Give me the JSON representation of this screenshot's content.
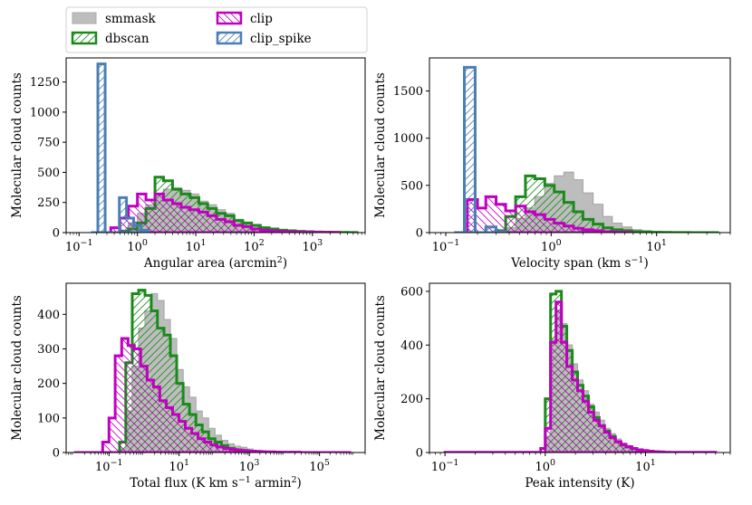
{
  "legend": {
    "placement": "top-left, above the top-left panel",
    "entries": [
      {
        "label": "smmask",
        "edge": "#a9a9a9",
        "fill": "#bdbdbd",
        "hatch": "none"
      },
      {
        "label": "dbscan",
        "edge": "#1a8a1a",
        "fill": "none",
        "hatch": "//"
      },
      {
        "label": "clip",
        "edge": "#c000c0",
        "fill": "none",
        "hatch": "\\\\"
      },
      {
        "label": "clip_spike",
        "edge": "#4a7fb5",
        "fill": "none",
        "hatch": "//"
      }
    ]
  },
  "chart_data": [
    {
      "type": "histogram",
      "xlabel": "Angular area (arcmin",
      "xlabel_sup": "2",
      "xlabel_tail": ")",
      "ylabel": "Molecular cloud counts",
      "xscale": "log",
      "xlim": [
        0.06,
        8000
      ],
      "ylim": [
        0,
        1450
      ],
      "grid": false,
      "xticks": [
        {
          "value": 0.1,
          "base": "10",
          "exp": "−1"
        },
        {
          "value": 1,
          "base": "10",
          "exp": "0"
        },
        {
          "value": 10,
          "base": "10",
          "exp": "1"
        },
        {
          "value": 100,
          "base": "10",
          "exp": "2"
        },
        {
          "value": 1000,
          "base": "10",
          "exp": "3"
        }
      ],
      "yticks": [
        0,
        250,
        500,
        750,
        1000,
        1250
      ],
      "series": [
        {
          "name": "smmask",
          "edges": [
            0.5,
            0.7,
            1.0,
            1.4,
            2.0,
            2.8,
            4.0,
            5.6,
            8.0,
            11.3,
            16,
            22.6,
            32,
            45.3,
            64,
            90.5,
            128,
            181,
            256,
            362,
            512,
            724,
            1024,
            1448,
            2048,
            2896,
            4096,
            5793
          ],
          "counts": [
            20,
            80,
            160,
            230,
            320,
            360,
            370,
            350,
            320,
            260,
            230,
            190,
            160,
            110,
            80,
            60,
            45,
            30,
            20,
            15,
            10,
            8,
            6,
            5,
            3,
            2,
            1
          ]
        },
        {
          "name": "dbscan",
          "edges": [
            0.5,
            0.7,
            1.0,
            1.4,
            2.0,
            2.8,
            4.0,
            5.6,
            8.0,
            11.3,
            16,
            22.6,
            32,
            45.3,
            64,
            90.5,
            128,
            181,
            256,
            362,
            512,
            724,
            1024,
            1448,
            2048,
            2896,
            4096,
            5793
          ],
          "counts": [
            10,
            30,
            80,
            200,
            460,
            430,
            360,
            320,
            290,
            240,
            200,
            160,
            140,
            100,
            80,
            60,
            40,
            30,
            20,
            15,
            10,
            8,
            5,
            4,
            3,
            2,
            1
          ]
        },
        {
          "name": "clip",
          "edges": [
            0.35,
            0.5,
            0.7,
            1.0,
            1.4,
            2.0,
            2.8,
            4.0,
            5.6,
            8.0,
            11.3,
            16,
            22.6,
            32,
            45.3,
            64,
            90.5,
            128,
            181,
            256,
            362,
            512,
            724,
            1024,
            1448,
            2048,
            2896
          ],
          "counts": [
            40,
            120,
            220,
            320,
            270,
            320,
            270,
            240,
            210,
            190,
            170,
            140,
            110,
            90,
            60,
            50,
            30,
            20,
            15,
            10,
            8,
            5,
            4,
            3,
            2,
            1
          ]
        },
        {
          "name": "clip_spike",
          "edges": [
            0.16,
            0.21,
            0.28,
            0.37,
            0.49,
            0.65,
            0.86,
            1.15,
            1.53
          ],
          "counts": [
            0,
            1400,
            0,
            0,
            290,
            120,
            60,
            20
          ]
        }
      ]
    },
    {
      "type": "histogram",
      "xlabel": "Velocity span (km s",
      "xlabel_sup": "−1",
      "xlabel_tail": ")",
      "ylabel": "Molecular cloud counts",
      "xscale": "log",
      "xlim": [
        0.07,
        50
      ],
      "ylim": [
        0,
        1850
      ],
      "grid": false,
      "xticks": [
        {
          "value": 0.1,
          "base": "10",
          "exp": "−1"
        },
        {
          "value": 1,
          "base": "10",
          "exp": "0"
        },
        {
          "value": 10,
          "base": "10",
          "exp": "1"
        }
      ],
      "yticks": [
        0,
        500,
        1000,
        1500
      ],
      "series": [
        {
          "name": "smmask",
          "edges": [
            0.3,
            0.37,
            0.46,
            0.57,
            0.7,
            0.87,
            1.07,
            1.32,
            1.63,
            2.0,
            2.5,
            3.1,
            3.8,
            4.7,
            5.8,
            7.2,
            8.9,
            11,
            13.6,
            16.8,
            20.7,
            25.6,
            31.6,
            39
          ],
          "counts": [
            10,
            50,
            150,
            260,
            380,
            520,
            600,
            640,
            560,
            420,
            300,
            170,
            100,
            60,
            30,
            20,
            10,
            8,
            5,
            3,
            2,
            1,
            1
          ]
        },
        {
          "name": "dbscan",
          "edges": [
            0.3,
            0.37,
            0.46,
            0.57,
            0.7,
            0.87,
            1.07,
            1.32,
            1.63,
            2.0,
            2.5,
            3.1,
            3.8,
            4.7,
            5.8,
            7.2,
            8.9,
            11,
            13.6,
            16.8,
            20.7,
            25.6,
            31.6,
            39
          ],
          "counts": [
            20,
            170,
            380,
            600,
            570,
            500,
            430,
            320,
            220,
            140,
            90,
            50,
            30,
            20,
            10,
            6,
            4,
            2,
            1,
            1,
            0,
            0,
            0
          ]
        },
        {
          "name": "clip",
          "edges": [
            0.16,
            0.2,
            0.24,
            0.3,
            0.37,
            0.46,
            0.57,
            0.7,
            0.87,
            1.07,
            1.32,
            1.63,
            2.0,
            2.5,
            3.1,
            3.8,
            4.7,
            5.8
          ],
          "counts": [
            350,
            260,
            380,
            300,
            230,
            280,
            220,
            190,
            140,
            100,
            70,
            45,
            30,
            20,
            10,
            5,
            2
          ]
        },
        {
          "name": "clip_spike",
          "edges": [
            0.12,
            0.15,
            0.19,
            0.24,
            0.3,
            0.37
          ],
          "counts": [
            0,
            1750,
            0,
            60,
            10
          ]
        }
      ]
    },
    {
      "type": "histogram",
      "xlabel": "Total flux (K km s",
      "xlabel_sup": "−1",
      "xlabel_tail": " armin",
      "xlabel_sup2": "2",
      "xlabel_tail2": ")",
      "ylabel": "Molecular cloud counts",
      "xscale": "log",
      "xlim": [
        0.006,
        2000000
      ],
      "ylim": [
        0,
        490
      ],
      "grid": false,
      "xticks": [
        {
          "value": 0.1,
          "base": "10",
          "exp": "−1"
        },
        {
          "value": 10,
          "base": "10",
          "exp": "1"
        },
        {
          "value": 1000,
          "base": "10",
          "exp": "3"
        },
        {
          "value": 100000,
          "base": "10",
          "exp": "5"
        }
      ],
      "yticks": [
        0,
        100,
        200,
        300,
        400
      ],
      "series": [
        {
          "name": "smmask",
          "edges": [
            0.2,
            0.3,
            0.46,
            0.7,
            1.06,
            1.6,
            2.4,
            3.7,
            5.6,
            8.5,
            13,
            19.7,
            30,
            45.5,
            69,
            105,
            160,
            243,
            370,
            560,
            850,
            1290,
            1960,
            2980,
            4530,
            6880,
            10450
          ],
          "counts": [
            10,
            120,
            250,
            360,
            410,
            460,
            440,
            385,
            330,
            240,
            190,
            160,
            120,
            100,
            70,
            50,
            35,
            25,
            18,
            15,
            10,
            6,
            5,
            3,
            2,
            1
          ]
        },
        {
          "name": "dbscan",
          "edges": [
            0.2,
            0.3,
            0.46,
            0.7,
            1.06,
            1.6,
            2.4,
            3.7,
            5.6,
            8.5,
            13,
            19.7,
            30,
            45.5,
            69,
            105,
            160,
            243,
            370,
            560,
            850,
            1290,
            1960,
            2980,
            4530,
            6880,
            10450
          ],
          "counts": [
            30,
            260,
            460,
            470,
            455,
            410,
            360,
            340,
            280,
            200,
            140,
            110,
            80,
            60,
            40,
            30,
            20,
            12,
            8,
            6,
            4,
            3,
            2,
            1,
            1,
            0
          ]
        },
        {
          "name": "clip",
          "edges": [
            0.01,
            0.028,
            0.043,
            0.066,
            0.1,
            0.15,
            0.23,
            0.35,
            0.53,
            0.8,
            1.22,
            1.85,
            2.8,
            4.3,
            6.5,
            9.9,
            15,
            22.8,
            34.6,
            52.6,
            80,
            121,
            184,
            280,
            426,
            647,
            983,
            1495,
            2270,
            3450,
            5250,
            7970,
            12100,
            18400,
            28000,
            42500,
            64600,
            98200,
            149000,
            227000,
            345000,
            524000,
            797000
          ],
          "counts": [
            0,
            0,
            0,
            30,
            100,
            280,
            330,
            310,
            300,
            250,
            210,
            190,
            150,
            130,
            110,
            90,
            70,
            55,
            40,
            30,
            22,
            16,
            12,
            9,
            7,
            5,
            4,
            3,
            2,
            2,
            1,
            1,
            1,
            1,
            0,
            0,
            0,
            0,
            0,
            0,
            0,
            0
          ]
        }
      ]
    },
    {
      "type": "histogram",
      "xlabel": "Peak intensity (K)",
      "ylabel": "Molecular cloud counts",
      "xscale": "log",
      "xlim": [
        0.07,
        70
      ],
      "ylim": [
        0,
        630
      ],
      "grid": false,
      "xticks": [
        {
          "value": 0.1,
          "base": "10",
          "exp": "−1"
        },
        {
          "value": 1,
          "base": "10",
          "exp": "0"
        },
        {
          "value": 10,
          "base": "10",
          "exp": "1"
        }
      ],
      "yticks": [
        0,
        200,
        400,
        600
      ],
      "series": [
        {
          "name": "smmask",
          "edges": [
            0.9,
            1.0,
            1.13,
            1.28,
            1.45,
            1.64,
            1.86,
            2.1,
            2.38,
            2.7,
            3.05,
            3.45,
            3.9,
            4.4,
            5.0,
            5.7,
            6.4,
            7.3,
            8.2,
            9.3,
            10.5,
            11.9,
            13.5,
            15.2,
            17.2
          ],
          "counts": [
            0,
            60,
            420,
            530,
            480,
            400,
            330,
            270,
            230,
            180,
            150,
            120,
            90,
            70,
            50,
            35,
            25,
            18,
            12,
            8,
            6,
            4,
            2,
            1
          ]
        },
        {
          "name": "dbscan",
          "edges": [
            0.9,
            1.0,
            1.13,
            1.28,
            1.45,
            1.64,
            1.86,
            2.1,
            2.38,
            2.7,
            3.05,
            3.45,
            3.9,
            4.4,
            5.0,
            5.7,
            6.4,
            7.3,
            8.2,
            9.3,
            10.5,
            11.9,
            13.5,
            15.2,
            17.2
          ],
          "counts": [
            0,
            200,
            590,
            600,
            470,
            380,
            300,
            250,
            210,
            170,
            130,
            100,
            80,
            60,
            40,
            28,
            20,
            14,
            10,
            7,
            5,
            3,
            2,
            1
          ]
        },
        {
          "name": "clip",
          "edges": [
            0.1,
            0.9,
            1.0,
            1.13,
            1.28,
            1.45,
            1.64,
            1.86,
            2.1,
            2.38,
            2.7,
            3.05,
            3.45,
            3.9,
            4.4,
            5.0,
            5.7,
            6.4,
            7.3,
            8.2,
            9.3,
            10.5,
            11.9,
            13.5,
            15.2,
            17.2,
            50
          ],
          "counts": [
            1,
            15,
            90,
            410,
            560,
            410,
            320,
            270,
            230,
            190,
            150,
            120,
            100,
            75,
            55,
            40,
            30,
            22,
            15,
            10,
            7,
            5,
            3,
            2,
            1,
            1
          ]
        }
      ]
    }
  ]
}
